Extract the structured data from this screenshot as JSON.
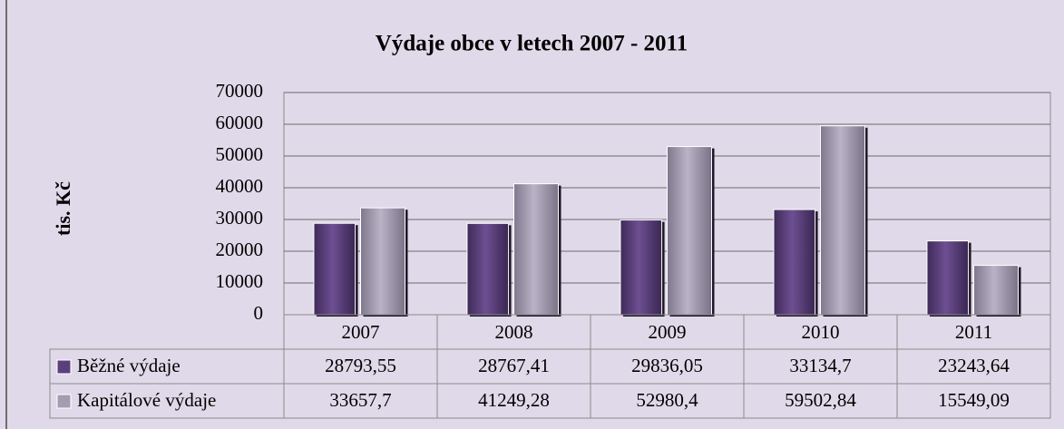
{
  "chart_data": {
    "type": "bar",
    "title": "Výdaje obce v letech 2007 - 2011",
    "y_label": "tis. Kč",
    "categories": [
      "2007",
      "2008",
      "2009",
      "2010",
      "2011"
    ],
    "series": [
      {
        "name": "Běžné výdaje",
        "color": "#5b3f7c",
        "values": [
          28793.55,
          28767.41,
          29836.05,
          33134.7,
          23243.64
        ],
        "value_labels": [
          "28793,55",
          "28767,41",
          "29836,05",
          "33134,7",
          "23243,64"
        ]
      },
      {
        "name": "Kapitálové výdaje",
        "color": "#a49cb1",
        "values": [
          33657.7,
          41249.28,
          52980.4,
          59502.84,
          15549.09
        ],
        "value_labels": [
          "33657,7",
          "41249,28",
          "52980,4",
          "59502,84",
          "15549,09"
        ]
      }
    ],
    "ylim": [
      0,
      70000
    ],
    "yticks": [
      0,
      10000,
      20000,
      30000,
      40000,
      50000,
      60000,
      70000
    ],
    "grid": true,
    "data_table": true
  }
}
